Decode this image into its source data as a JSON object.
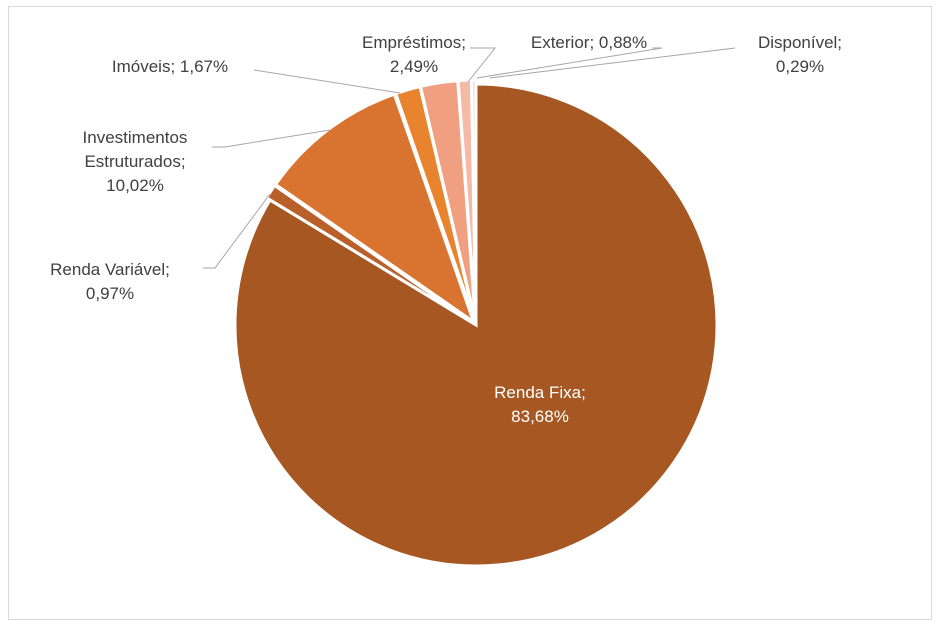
{
  "chart_data": {
    "type": "pie",
    "title": "",
    "slices": [
      {
        "name": "Renda Fixa",
        "value": 83.68,
        "label_lines": [
          "Renda Fixa;",
          "83,68%"
        ],
        "color": "#a65722"
      },
      {
        "name": "Renda Variável",
        "value": 0.97,
        "label_lines": [
          "Renda Variável;",
          "0,97%"
        ],
        "color": "#b9602a"
      },
      {
        "name": "Investimentos Estruturados",
        "value": 10.02,
        "label_lines": [
          "Investimentos",
          "Estruturados;",
          "10,02%"
        ],
        "color": "#d97430"
      },
      {
        "name": "Imóveis",
        "value": 1.67,
        "label_lines": [
          "Imóveis; 1,67%"
        ],
        "color": "#e8832e"
      },
      {
        "name": "Empréstimos",
        "value": 2.49,
        "label_lines": [
          "Empréstimos;",
          "2,49%"
        ],
        "color": "#f0a080"
      },
      {
        "name": "Exterior",
        "value": 0.88,
        "label_lines": [
          "Exterior; 0,88%"
        ],
        "color": "#f5b9a8"
      },
      {
        "name": "Disponível",
        "value": 0.29,
        "label_lines": [
          "Disponível;",
          "0,29%"
        ],
        "color": "#fad6cc"
      }
    ],
    "start_angle": "12 o'clock",
    "direction": "clockwise",
    "legend": "none",
    "data_labels": "category and percentage"
  }
}
